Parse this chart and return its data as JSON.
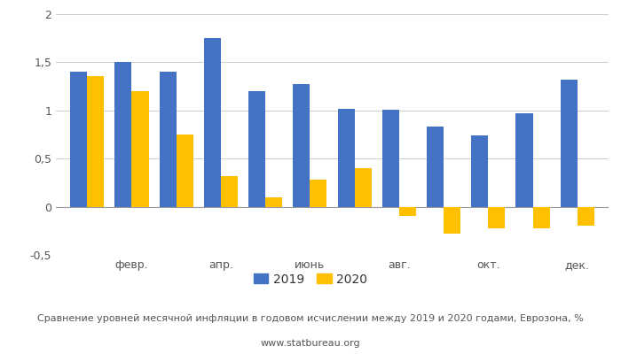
{
  "labels_shown": [
    "февр.",
    "апр.",
    "июнь",
    "авг.",
    "окт.",
    "дек."
  ],
  "shown_positions": [
    1,
    3,
    5,
    7,
    9,
    11
  ],
  "values_2019": [
    1.4,
    1.5,
    1.4,
    1.75,
    1.2,
    1.27,
    1.02,
    1.01,
    0.83,
    0.74,
    0.97,
    1.32
  ],
  "values_2020": [
    1.36,
    1.2,
    0.75,
    0.32,
    0.1,
    0.28,
    0.4,
    -0.1,
    -0.28,
    -0.22,
    -0.22,
    -0.2
  ],
  "color_2019": "#4472C4",
  "color_2020": "#FFC000",
  "ylim": [
    -0.5,
    2.0
  ],
  "yticks": [
    -0.5,
    0.0,
    0.5,
    1.0,
    1.5,
    2.0
  ],
  "ytick_labels": [
    "-0,5",
    "0",
    "0,5",
    "1",
    "1,5",
    "2"
  ],
  "legend_labels": [
    "2019",
    "2020"
  ],
  "caption_line1": "Сравнение уровней месячной инфляции в годовом исчислении между 2019 и 2020 годами, Еврозона, %",
  "caption_line2": "www.statbureau.org"
}
